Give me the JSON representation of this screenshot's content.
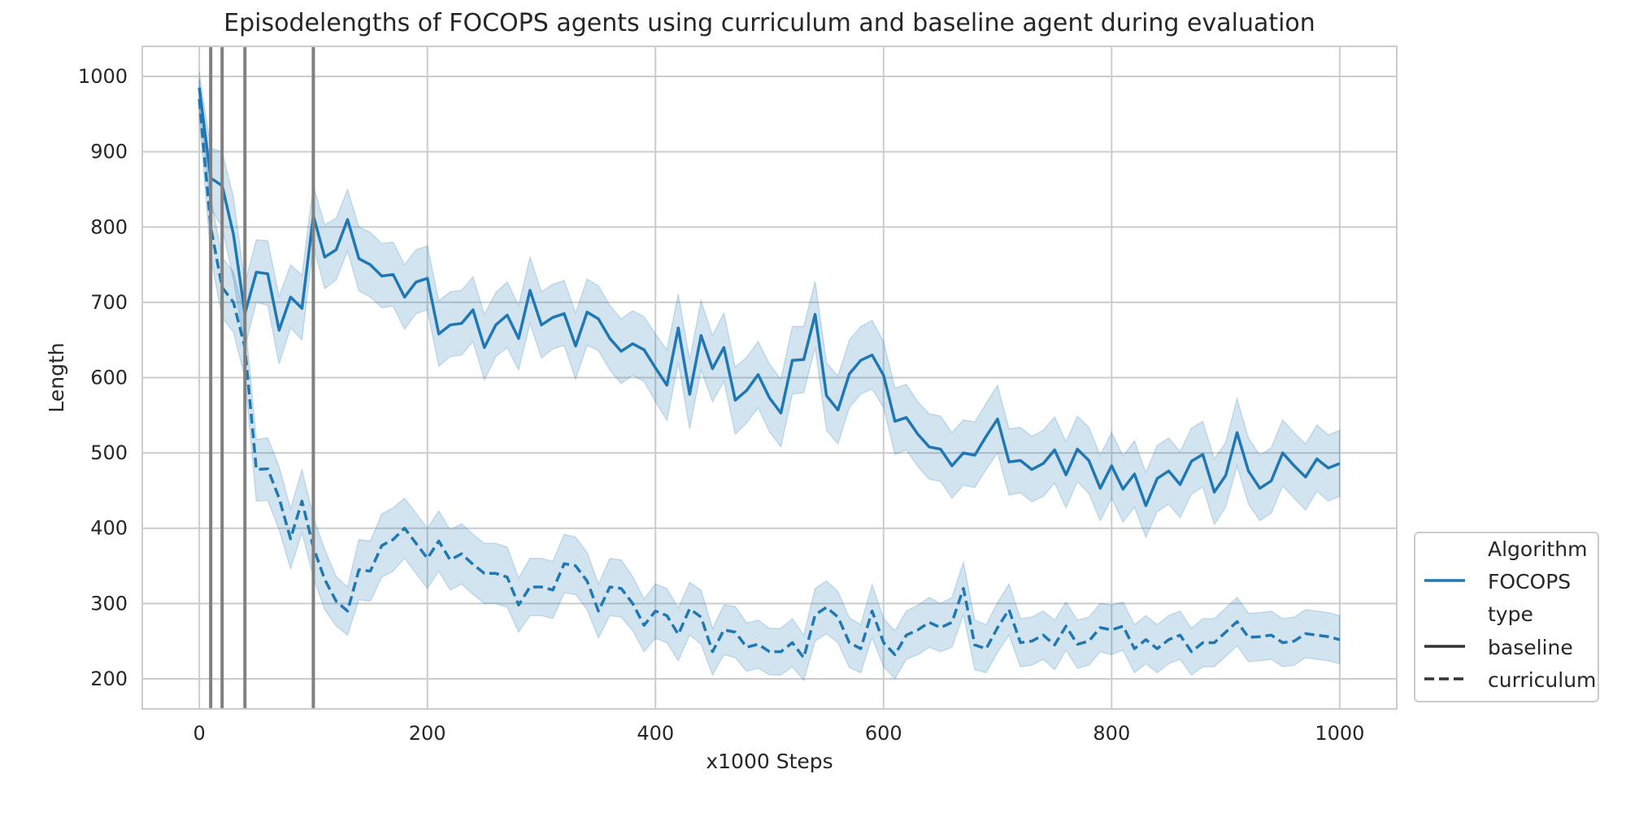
{
  "chart_data": {
    "type": "line",
    "title": "Episodelengths of FOCOPS agents using curriculum and baseline agent during evaluation",
    "xlabel": "x1000 Steps",
    "ylabel": "Length",
    "xlim": [
      -50,
      1050
    ],
    "ylim": [
      160,
      1040
    ],
    "xticks": [
      0,
      200,
      400,
      600,
      800,
      1000
    ],
    "yticks": [
      200,
      300,
      400,
      500,
      600,
      700,
      800,
      900,
      1000
    ],
    "grid": true,
    "legend_placement": "lower-right-outside",
    "legend": {
      "hue_title": "Algorithm",
      "hue_items": [
        {
          "label": "FOCOPS",
          "color": "#1f77b4"
        }
      ],
      "style_title": "type",
      "style_items": [
        {
          "label": "baseline",
          "dash": "solid"
        },
        {
          "label": "curriculum",
          "dash": "dashed"
        }
      ]
    },
    "vlines": [
      10,
      20,
      40,
      100
    ],
    "vline_color": "#808080",
    "series_color": "#1f77b4",
    "band_color": "#1f77b4",
    "x": [
      0,
      10,
      20,
      30,
      40,
      50,
      60,
      70,
      80,
      90,
      100,
      110,
      120,
      130,
      140,
      150,
      160,
      170,
      180,
      190,
      200,
      210,
      220,
      230,
      240,
      250,
      260,
      270,
      280,
      290,
      300,
      310,
      320,
      330,
      340,
      350,
      360,
      370,
      380,
      390,
      400,
      410,
      420,
      430,
      440,
      450,
      460,
      470,
      480,
      490,
      500,
      510,
      520,
      530,
      540,
      550,
      560,
      570,
      580,
      590,
      600,
      610,
      620,
      630,
      640,
      650,
      660,
      670,
      680,
      690,
      700,
      710,
      720,
      730,
      740,
      750,
      760,
      770,
      780,
      790,
      800,
      810,
      820,
      830,
      840,
      850,
      860,
      870,
      880,
      890,
      900,
      910,
      920,
      930,
      940,
      950,
      960,
      970,
      980,
      990,
      1000
    ],
    "series": [
      {
        "style": "baseline",
        "values": [
          985,
          865,
          855,
          790,
          685,
          740,
          738,
          663,
          707,
          692,
          815,
          760,
          770,
          810,
          758,
          750,
          735,
          737,
          707,
          727,
          732,
          658,
          670,
          672,
          690,
          640,
          670,
          683,
          652,
          716,
          670,
          680,
          685,
          642,
          687,
          678,
          652,
          635,
          645,
          637,
          613,
          590,
          666,
          578,
          656,
          612,
          640,
          570,
          583,
          604,
          573,
          553,
          623,
          624,
          684,
          576,
          557,
          605,
          623,
          630,
          603,
          542,
          547,
          525,
          508,
          505,
          483,
          500,
          497,
          522,
          545,
          488,
          490,
          478,
          486,
          504,
          471,
          505,
          490,
          453,
          483,
          452,
          472,
          430,
          466,
          476,
          458,
          489,
          498,
          448,
          470,
          527,
          476,
          453,
          463,
          500,
          483,
          468,
          492,
          480,
          486
        ],
        "lower": [
          960,
          825,
          800,
          730,
          640,
          700,
          696,
          618,
          666,
          650,
          775,
          718,
          730,
          768,
          715,
          707,
          693,
          695,
          664,
          685,
          690,
          615,
          628,
          630,
          648,
          597,
          628,
          640,
          610,
          672,
          626,
          638,
          643,
          598,
          643,
          636,
          610,
          592,
          603,
          595,
          568,
          543,
          620,
          532,
          610,
          568,
          595,
          525,
          540,
          560,
          528,
          508,
          578,
          580,
          640,
          530,
          512,
          560,
          578,
          585,
          560,
          498,
          504,
          482,
          465,
          462,
          440,
          457,
          454,
          478,
          500,
          444,
          447,
          435,
          442,
          460,
          427,
          462,
          446,
          410,
          440,
          408,
          428,
          388,
          422,
          432,
          414,
          445,
          455,
          405,
          428,
          483,
          432,
          410,
          420,
          456,
          440,
          424,
          449,
          436,
          442
        ],
        "upper": [
          1005,
          905,
          900,
          840,
          725,
          783,
          782,
          708,
          750,
          736,
          855,
          803,
          812,
          850,
          800,
          793,
          778,
          780,
          750,
          770,
          775,
          702,
          714,
          716,
          734,
          684,
          713,
          727,
          696,
          760,
          714,
          724,
          729,
          686,
          731,
          722,
          696,
          678,
          689,
          681,
          658,
          637,
          711,
          624,
          702,
          656,
          686,
          614,
          627,
          648,
          618,
          598,
          668,
          668,
          728,
          620,
          602,
          650,
          668,
          676,
          648,
          586,
          591,
          568,
          552,
          549,
          527,
          544,
          541,
          566,
          590,
          532,
          534,
          522,
          530,
          548,
          515,
          549,
          534,
          497,
          527,
          496,
          516,
          474,
          510,
          520,
          502,
          533,
          542,
          492,
          514,
          572,
          520,
          497,
          507,
          544,
          527,
          512,
          537,
          524,
          530
        ]
      },
      {
        "style": "curriculum",
        "values": [
          970,
          800,
          720,
          700,
          640,
          478,
          479,
          440,
          386,
          436,
          375,
          332,
          303,
          290,
          345,
          343,
          377,
          385,
          400,
          380,
          360,
          383,
          358,
          366,
          352,
          340,
          340,
          335,
          298,
          322,
          322,
          318,
          353,
          350,
          330,
          290,
          322,
          320,
          300,
          271,
          290,
          284,
          259,
          293,
          282,
          236,
          265,
          262,
          242,
          246,
          236,
          236,
          248,
          228,
          285,
          295,
          282,
          248,
          240,
          290,
          248,
          232,
          258,
          265,
          275,
          268,
          275,
          320,
          245,
          240,
          268,
          292,
          248,
          250,
          258,
          245,
          270,
          246,
          250,
          268,
          265,
          270,
          240,
          252,
          240,
          252,
          258,
          236,
          248,
          248,
          262,
          276,
          255,
          256,
          258,
          248,
          250,
          260,
          258,
          256,
          252
        ],
        "lower": [
          945,
          760,
          680,
          660,
          600,
          436,
          437,
          398,
          346,
          394,
          335,
          292,
          270,
          258,
          305,
          303,
          335,
          343,
          360,
          340,
          320,
          343,
          318,
          326,
          312,
          300,
          300,
          295,
          262,
          284,
          284,
          280,
          314,
          312,
          292,
          254,
          284,
          282,
          264,
          236,
          254,
          248,
          224,
          258,
          246,
          205,
          232,
          228,
          210,
          214,
          205,
          205,
          216,
          198,
          250,
          260,
          248,
          215,
          208,
          255,
          216,
          200,
          226,
          232,
          242,
          236,
          242,
          285,
          212,
          208,
          235,
          258,
          216,
          218,
          226,
          212,
          238,
          214,
          218,
          236,
          232,
          238,
          208,
          220,
          208,
          220,
          226,
          205,
          216,
          216,
          230,
          244,
          223,
          224,
          226,
          216,
          218,
          228,
          226,
          224,
          220
        ],
        "upper": [
          995,
          840,
          760,
          740,
          680,
          518,
          520,
          482,
          426,
          478,
          415,
          372,
          336,
          322,
          385,
          383,
          419,
          427,
          440,
          420,
          400,
          423,
          398,
          406,
          392,
          380,
          380,
          375,
          334,
          360,
          360,
          356,
          392,
          388,
          368,
          326,
          360,
          358,
          336,
          306,
          326,
          320,
          294,
          328,
          318,
          267,
          298,
          296,
          274,
          278,
          267,
          267,
          280,
          258,
          320,
          330,
          316,
          281,
          272,
          325,
          280,
          264,
          290,
          298,
          308,
          300,
          308,
          355,
          278,
          272,
          301,
          326,
          280,
          282,
          290,
          278,
          302,
          278,
          282,
          300,
          298,
          302,
          272,
          284,
          272,
          284,
          290,
          267,
          280,
          280,
          294,
          308,
          287,
          288,
          290,
          280,
          282,
          292,
          290,
          288,
          284
        ]
      }
    ]
  }
}
